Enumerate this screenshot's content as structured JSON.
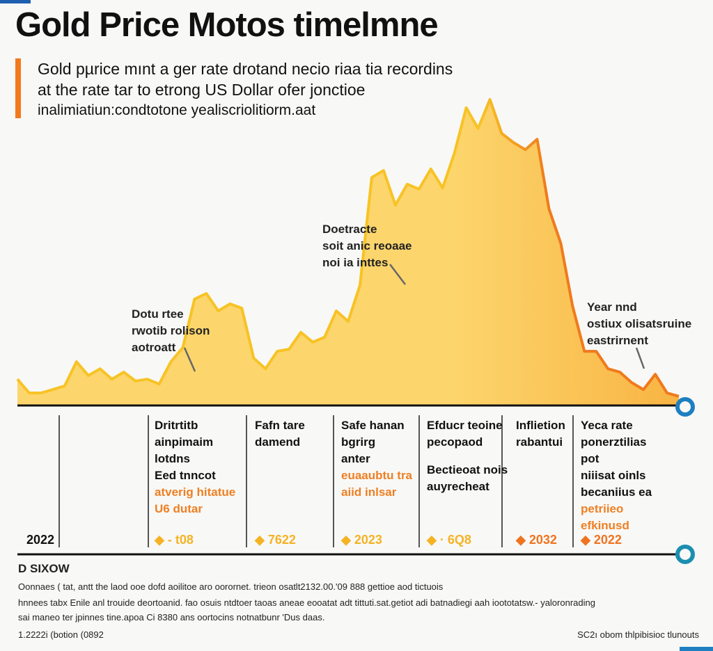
{
  "title": "Gold Price Motos timelmne",
  "title_accent_char": "s",
  "subtitle": [
    "Gold pµrice mınt a ger rate drotand necio riaa tia recordins",
    "at the rate tar to etrong US Dollar ofer jonctioe",
    "inalimiatiun:condtotone yealiscriolitiorm.aat"
  ],
  "colors": {
    "line_start": "#f7c325",
    "line_end": "#f07a1c",
    "fill_start": "#fcd56c",
    "fill_end": "#f8b443",
    "accent": "#f07a1c",
    "ring": "#1e7fc0"
  },
  "chart_data": {
    "type": "area",
    "title": "Gold Price Motos timelmne",
    "xlabel": "",
    "ylabel": "",
    "grid": false,
    "y_relative_index": [
      8.6,
      4.1,
      4.1,
      5.2,
      6.4,
      14.3,
      9.8,
      12.0,
      8.6,
      10.9,
      8.0,
      8.6,
      7.0,
      14.3,
      18.9,
      34.8,
      36.6,
      30.9,
      33.2,
      31.8,
      15.5,
      12.0,
      17.7,
      18.4,
      23.9,
      20.7,
      22.3,
      30.9,
      27.5,
      39.3,
      74.5,
      76.8,
      65.5,
      72.3,
      70.7,
      77.3,
      71.1,
      82.5,
      97.3,
      90.5,
      100,
      88.9,
      85.9,
      83.6,
      87.0,
      64.3,
      53.0,
      32.5,
      17.7,
      17.7,
      12.0,
      10.9,
      7.5,
      5.2,
      10.2,
      4.1,
      3.0
    ],
    "ylim": [
      0,
      100
    ],
    "annotations": [
      {
        "lines": [
          "Dotu rtee",
          "rwotib rolison",
          "aotroatt"
        ]
      },
      {
        "lines": [
          "Doetracte",
          "soit anic reoaae",
          "noi ia inttes"
        ]
      },
      {
        "lines": [
          "Year nnd",
          "ostiux olisatsruine",
          "eastrirnent"
        ]
      }
    ]
  },
  "timeline": {
    "start_year": "2022",
    "columns": [
      {
        "lines": [
          "Dritrtitb",
          "ainpimaim",
          "lotdns",
          "Eed tnncot"
        ],
        "orange": [
          "atverig hitatue",
          "U6 dutar"
        ],
        "year": "- t08",
        "marker": "#f5b324"
      },
      {
        "lines": [
          "Fafn tare",
          "damend"
        ],
        "orange": [],
        "year": "7622",
        "marker": "#f5b324"
      },
      {
        "lines": [
          "Safe hanan",
          "bgrirg",
          "anter"
        ],
        "orange": [
          "euaaubtu tra",
          "aiid inlsar"
        ],
        "year": "2023",
        "marker": "#f5b324"
      },
      {
        "lines": [
          "Efducr teoine",
          "pecopaod",
          "",
          "Bectieoat nois",
          "auyrecheat"
        ],
        "orange": [],
        "year": "· 6Q8",
        "marker": "#f5b324"
      },
      {
        "lines": [
          "Inflietion",
          "rabantui"
        ],
        "orange": [],
        "year": "2032",
        "marker": "#ef7420"
      },
      {
        "lines": [
          "Yeca rate",
          "ponerztilias",
          "pot",
          "niiisat oinls",
          "becaniius ea"
        ],
        "orange": [
          "petriieo efkinusd"
        ],
        "year": "2022",
        "marker": "#ef7420"
      }
    ]
  },
  "footer": {
    "heading": "D SIXOW",
    "body": [
      "Oonnaes ( tat, antt the laod ooe dofd aoilitoe aro oorornet. trieon osatlt2132.00.'09 888 gettioe aod tictuois",
      "hnnees tabx Enile anl trouide deortoanid. fao osuis ntdtoer taoas aneae eooatat adt tittuti.sat.getiot adi batnadiegi aah ioototatsw.- yaloronrading",
      "sai maneo ter jpinnes tine.apoa Ci 8380 ans oortocins notnatbunr 'Dus daas."
    ],
    "left_note": "1.2222i (botion (0892",
    "right_note": "SC2ı obom thlpibisioc tlunouts"
  }
}
